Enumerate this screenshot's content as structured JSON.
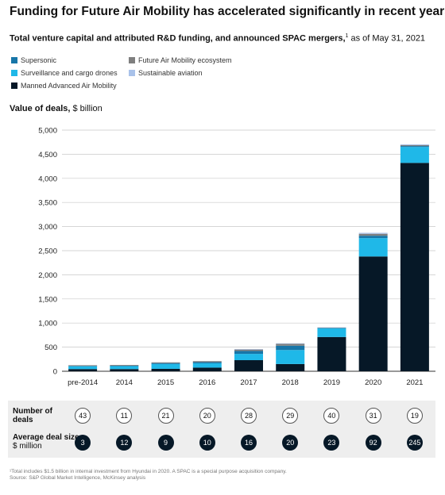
{
  "title": "Funding for Future Air Mobility has accelerated significantly in recent years.",
  "subtitle_bold": "Total venture capital and attributed R&D funding, and announced SPAC mergers,",
  "subtitle_sup": "1",
  "subtitle_rest": " as of May 31, 2021",
  "value_label_bold": "Value of deals,",
  "value_label_rest": " $ billion",
  "legend": [
    {
      "label": "Supersonic",
      "color": "#1776a8"
    },
    {
      "label": "Future Air Mobility ecosystem",
      "color": "#7f7f7f"
    },
    {
      "label": "Surveillance and cargo drones",
      "color": "#1fb8e8"
    },
    {
      "label": "Sustainable aviation",
      "color": "#a9c2ea"
    },
    {
      "label": "Manned Advanced Air Mobility",
      "color": "#061827"
    }
  ],
  "chart_data": {
    "type": "bar",
    "stacked": true,
    "categories": [
      "pre-2014",
      "2014",
      "2015",
      "2016",
      "2017",
      "2018",
      "2019",
      "2020",
      "2021"
    ],
    "series": [
      {
        "name": "Manned Advanced Air Mobility",
        "color": "#061827",
        "values": [
          45,
          45,
          50,
          75,
          230,
          150,
          710,
          2380,
          4320
        ]
      },
      {
        "name": "Surveillance and cargo drones",
        "color": "#1fb8e8",
        "values": [
          60,
          60,
          100,
          90,
          130,
          290,
          180,
          380,
          330
        ]
      },
      {
        "name": "Supersonic",
        "color": "#1776a8",
        "values": [
          5,
          10,
          20,
          25,
          60,
          90,
          10,
          50,
          20
        ]
      },
      {
        "name": "Future Air Mobility ecosystem",
        "color": "#7f7f7f",
        "values": [
          15,
          15,
          15,
          20,
          30,
          40,
          5,
          40,
          20
        ]
      },
      {
        "name": "Sustainable aviation",
        "color": "#a9c2ea",
        "values": [
          0,
          0,
          0,
          0,
          10,
          10,
          5,
          20,
          15
        ]
      }
    ],
    "ylim": [
      0,
      5000
    ],
    "yticks": [
      "0",
      "500",
      "1,000",
      "1,500",
      "2,000",
      "2,500",
      "3,000",
      "3,500",
      "4,000",
      "4,500",
      "5,000"
    ],
    "ytick_values": [
      0,
      500,
      1000,
      1500,
      2000,
      2500,
      3000,
      3500,
      4000,
      4500,
      5000
    ],
    "grid": true
  },
  "table": {
    "deals_label": "Number of deals",
    "avg_label_bold": "Average deal size,",
    "avg_label_rest": " $ million",
    "number_of_deals": [
      "43",
      "11",
      "21",
      "20",
      "28",
      "29",
      "40",
      "31",
      "19"
    ],
    "average_deal_size": [
      "3",
      "12",
      "9",
      "10",
      "16",
      "20",
      "23",
      "92",
      "245"
    ]
  },
  "footnote": "¹Total includes $1.5 billion in internal investment from Hyundai in 2020. A SPAC is a special purpose acquisition company.",
  "source": "Source: S&P Global Market Intelligence, McKinsey analysis"
}
